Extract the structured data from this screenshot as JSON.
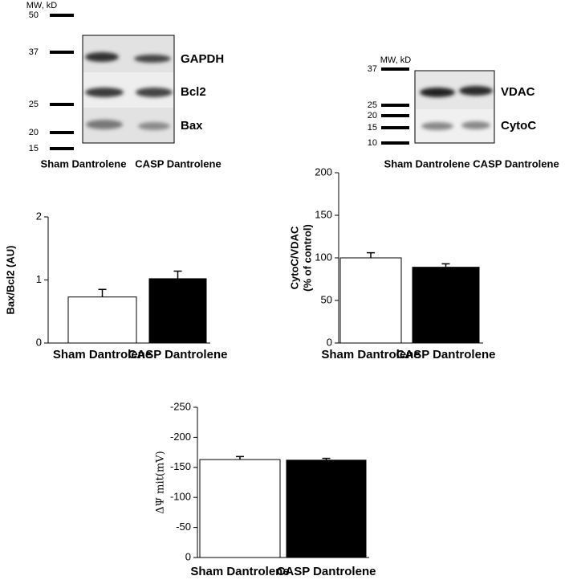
{
  "blots": [
    {
      "mw_label": "MW, kD",
      "markers": [
        "50",
        "37",
        "25",
        "20",
        "15"
      ],
      "bands": [
        "GAPDH",
        "Bcl2",
        "Bax"
      ],
      "lanes": [
        "Sham Dantrolene",
        "CASP Dantrolene"
      ]
    },
    {
      "mw_label": "MW, kD",
      "markers": [
        "37",
        "25",
        "20",
        "15",
        "10"
      ],
      "bands": [
        "VDAC",
        "CytoC"
      ],
      "lanes": [
        "Sham Dantrolene",
        "CASP Dantrolene"
      ]
    }
  ],
  "chart_data": [
    {
      "type": "bar",
      "ylabel": [
        "Bax/Bcl2 (AU)"
      ],
      "categories": [
        "Sham Dantrolene",
        "CASP Dantrolene"
      ],
      "values": [
        0.73,
        1.02
      ],
      "errors": [
        0.12,
        0.12
      ],
      "colors": [
        "#ffffff",
        "#000000"
      ],
      "ylim": [
        0,
        2
      ],
      "yticks": [
        0,
        1,
        2
      ]
    },
    {
      "type": "bar",
      "ylabel": [
        "CytoC/VDAC",
        "(% of control)"
      ],
      "categories": [
        "Sham Dantrolene",
        "CASP Dantrolene"
      ],
      "values": [
        100,
        89
      ],
      "errors": [
        6,
        4
      ],
      "colors": [
        "#ffffff",
        "#000000"
      ],
      "ylim": [
        0,
        200
      ],
      "yticks": [
        0,
        50,
        100,
        150,
        200
      ]
    },
    {
      "type": "bar",
      "ylabel": [
        "ΔΨ mit(mV)"
      ],
      "categories": [
        "Sham Dantrolene",
        "CASP Dantrolene"
      ],
      "values": [
        -163,
        -162
      ],
      "errors": [
        5,
        3
      ],
      "colors": [
        "#ffffff",
        "#000000"
      ],
      "ylim": [
        0,
        -250
      ],
      "yticks": [
        0,
        -50,
        -100,
        -150,
        -200,
        -250
      ]
    }
  ]
}
